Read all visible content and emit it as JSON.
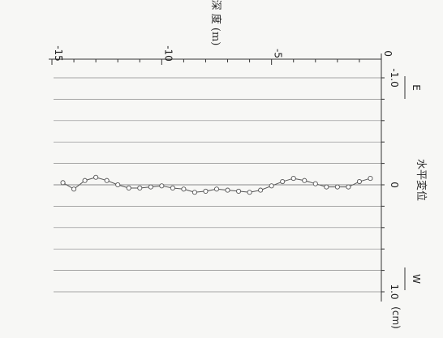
{
  "chart_data": {
    "type": "line",
    "title": "",
    "depth_axis_label": "深 度 (m)",
    "depth_ticks": [
      "0",
      "-5",
      "-10",
      "-15"
    ],
    "displacement_axis_label": "水平変位",
    "displacement_unit": "(cm)",
    "displacement_ticks": [
      "-1.0",
      "0",
      "1.0"
    ],
    "direction_labels": {
      "negative": "E",
      "positive": "W"
    },
    "depth_range": [
      -15,
      0
    ],
    "displacement_range": [
      -1.0,
      1.0
    ],
    "grid": true,
    "series": [
      {
        "depth": [
          -0.5,
          -1.0,
          -1.5,
          -2.0,
          -2.5,
          -3.0,
          -3.5,
          -4.0,
          -4.5,
          -5.0,
          -5.5,
          -6.0,
          -6.5,
          -7.0,
          -7.5,
          -8.0,
          -8.5,
          -9.0,
          -9.5,
          -10.0,
          -10.5,
          -11.0,
          -11.5,
          -12.0,
          -12.5,
          -13.0,
          -13.5,
          -14.0,
          -14.5
        ],
        "displacement": [
          -0.06,
          -0.03,
          0.02,
          0.02,
          0.02,
          -0.01,
          -0.04,
          -0.06,
          -0.03,
          0.01,
          0.05,
          0.07,
          0.06,
          0.05,
          0.04,
          0.06,
          0.07,
          0.04,
          0.03,
          0.01,
          0.02,
          0.03,
          0.03,
          0.0,
          -0.04,
          -0.07,
          -0.04,
          0.04,
          -0.02
        ]
      }
    ],
    "colors": {
      "line": "#555555",
      "marker_fill": "#ffffff",
      "grid": "#8a8a8a",
      "axis": "#333333"
    }
  }
}
